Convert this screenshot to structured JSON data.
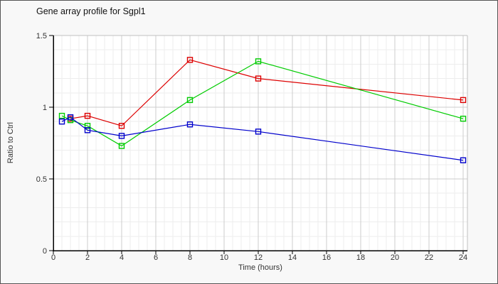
{
  "header": {
    "title": "Gene array profile for Sgpl1"
  },
  "chart_data": {
    "type": "line",
    "title": "Gene array profile for Sgpl1",
    "xlabel": "Time (hours)",
    "ylabel": "Ratio to Ctrl",
    "xlim": [
      0,
      24
    ],
    "ylim": [
      0,
      1.5
    ],
    "x_ticks": [
      0,
      2,
      4,
      6,
      8,
      10,
      12,
      14,
      16,
      18,
      20,
      22,
      24
    ],
    "x_tick_labels": [
      "0",
      "2",
      "4",
      "6",
      "8",
      "10",
      "12",
      "14",
      "16",
      "18",
      "20",
      "22",
      "24"
    ],
    "y_ticks": [
      0,
      0.5,
      1,
      1.5
    ],
    "y_tick_labels": [
      "0",
      "0.5",
      "1",
      "1.5"
    ],
    "grid": "major and minor, minor x step 0.5h, minor y step 0.1",
    "legend": "none",
    "marker": "open-square",
    "series": [
      {
        "name": "series-red",
        "color": "#dd0000",
        "points": [
          [
            1,
            0.92
          ],
          [
            2,
            0.94
          ],
          [
            4,
            0.87
          ],
          [
            8,
            1.33
          ],
          [
            12,
            1.2
          ],
          [
            24,
            1.05
          ]
        ]
      },
      {
        "name": "series-green",
        "color": "#00cc00",
        "points": [
          [
            0.5,
            0.94
          ],
          [
            1,
            0.91
          ],
          [
            2,
            0.87
          ],
          [
            4,
            0.73
          ],
          [
            8,
            1.05
          ],
          [
            12,
            1.32
          ],
          [
            24,
            0.92
          ]
        ]
      },
      {
        "name": "series-blue",
        "color": "#0000cc",
        "points": [
          [
            0.5,
            0.9
          ],
          [
            1,
            0.93
          ],
          [
            2,
            0.84
          ],
          [
            4,
            0.8
          ],
          [
            8,
            0.88
          ],
          [
            12,
            0.83
          ],
          [
            24,
            0.63
          ]
        ]
      }
    ],
    "colors": {
      "axis": "#000000",
      "grid_major": "#cccccc",
      "grid_minor": "#ededed",
      "plot_border": "#c0c0c0",
      "plot_bg": "#ffffff",
      "text": "#333333"
    }
  }
}
